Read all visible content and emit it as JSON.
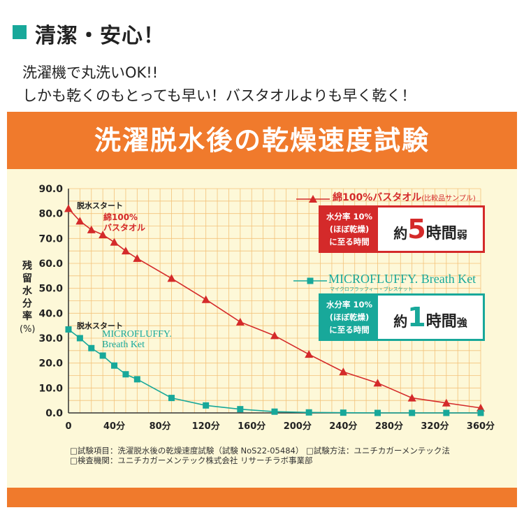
{
  "header": {
    "title": "清潔・安心！",
    "line1": "洗濯機で丸洗いOK!!",
    "line2": "しかも乾くのもとっても早い！バスタオルよりも早く乾く！"
  },
  "colors": {
    "accent": "#18a89a",
    "banner": "#f07a2c",
    "panel": "#fdf8d8",
    "red": "#d42a2a",
    "grid": "#f3c27a"
  },
  "chart_data": {
    "type": "line",
    "title": "洗濯脱水後の乾燥速度試験",
    "ylabel": "残留水分率",
    "ylabel_unit": "(%)",
    "ylim": [
      0,
      90
    ],
    "xlim": [
      0,
      360
    ],
    "grid": true,
    "yticks": [
      0,
      10,
      20,
      30,
      40,
      50,
      60,
      70,
      80,
      90
    ],
    "ytick_labels": [
      "0.0",
      "10.0",
      "20.0",
      "30.0",
      "40.0",
      "50.0",
      "60.0",
      "70.0",
      "80.0",
      "90.0"
    ],
    "xticks": [
      0,
      40,
      80,
      120,
      160,
      200,
      240,
      280,
      320,
      360
    ],
    "xtick_labels": [
      "0",
      "40分",
      "80分",
      "120分",
      "160分",
      "200分",
      "240分",
      "280分",
      "320分",
      "360分"
    ],
    "series": [
      {
        "name": "綿100%バスタオル",
        "note": "(比較品サンプル)",
        "color": "#d42a2a",
        "marker": "triangle",
        "x": [
          0,
          10,
          20,
          30,
          40,
          50,
          60,
          90,
          120,
          150,
          180,
          210,
          240,
          270,
          300,
          330,
          360
        ],
        "y": [
          82,
          77,
          73.5,
          71.5,
          68.5,
          65,
          62,
          54,
          45.5,
          36.5,
          31,
          23.5,
          16.5,
          12,
          6,
          4,
          2
        ]
      },
      {
        "name": "MICROFLUFFY Breath Ket",
        "color": "#18a89a",
        "marker": "square",
        "x": [
          0,
          10,
          20,
          30,
          40,
          50,
          60,
          90,
          120,
          150,
          180,
          210,
          240,
          270,
          300,
          330,
          360
        ],
        "y": [
          33.5,
          30,
          26,
          23,
          19,
          15.5,
          13.5,
          6,
          3,
          1.5,
          0.5,
          0.2,
          0.1,
          0,
          0,
          0,
          0
        ]
      }
    ],
    "annotations": {
      "start1": "脱水スタート",
      "start1_series_a": "綿100%",
      "start1_series_b": "バスタオル",
      "start2": "脱水スタート",
      "start2_series_a": "MICROFLUFFY.",
      "start2_series_b": "Breath Ket"
    }
  },
  "legend": {
    "item1_label": "綿100%バスタオル",
    "item1_note": "(比較品サンプル)",
    "item2_label": "MICROFLUFFY. Breath Ket",
    "item2_sub": "マイクロフラッフィー・ブレスケット"
  },
  "box1": {
    "line1": "水分率 10%",
    "line2": "(ほぼ乾燥)",
    "line3": "に至る時間",
    "pre": "約",
    "big": "5",
    "mid": "時間",
    "suf": "弱"
  },
  "box2": {
    "line1": "水分率 10%",
    "line2": "(ほぼ乾燥)",
    "line3": "に至る時間",
    "pre": "約",
    "big": "1",
    "mid": "時間",
    "suf": "強"
  },
  "notes": {
    "line1": "□試験項目：洗濯脱水後の乾燥速度試験（試験 NoS22-05484）  □試験方法：ユニチカガーメンテック法",
    "line2": "□検査機関：ユニチカガーメンテック株式会社 リサーチラボ事業部"
  }
}
